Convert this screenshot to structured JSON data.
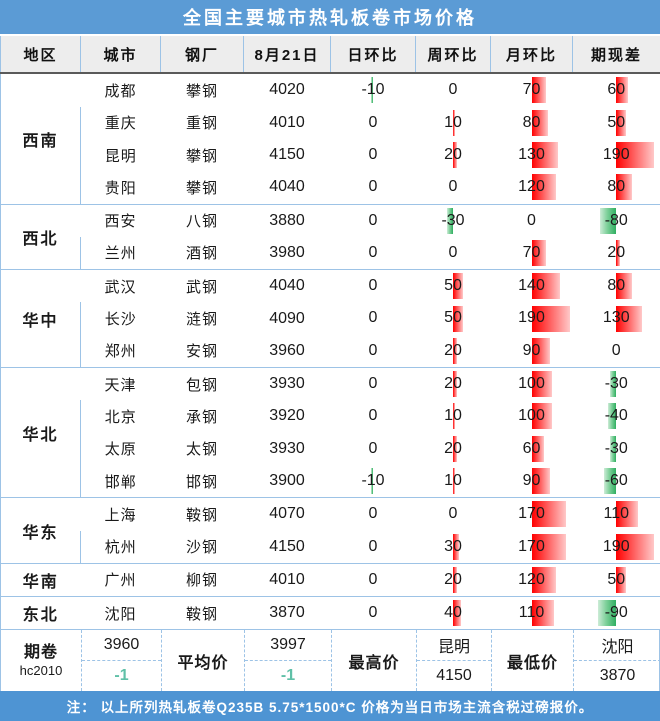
{
  "title": "全国主要城市热轧板卷市场价格",
  "columns": [
    "地区",
    "城市",
    "钢厂",
    "8月21日",
    "日环比",
    "周环比",
    "月环比",
    "期现差"
  ],
  "bar_scale": 0.2,
  "colors": {
    "title_bg": "#5B9BD5",
    "footnote_bg": "#4E94D3",
    "header_bg": "#EDEDED",
    "grid_blue": "#9DC3E6",
    "bar_positive": "#FF0000",
    "bar_negative": "#2FAE60",
    "change_text_green": "#5FC0A7"
  },
  "regions": [
    {
      "name": "西南",
      "rows": [
        {
          "city": "成都",
          "mill": "攀钢",
          "price": "4020",
          "day": -10,
          "week": 0,
          "month": 70,
          "spread": 60
        },
        {
          "city": "重庆",
          "mill": "重钢",
          "price": "4010",
          "day": 0,
          "week": 10,
          "month": 80,
          "spread": 50
        },
        {
          "city": "昆明",
          "mill": "攀钢",
          "price": "4150",
          "day": 0,
          "week": 20,
          "month": 130,
          "spread": 190
        },
        {
          "city": "贵阳",
          "mill": "攀钢",
          "price": "4040",
          "day": 0,
          "week": 0,
          "month": 120,
          "spread": 80
        }
      ]
    },
    {
      "name": "西北",
      "rows": [
        {
          "city": "西安",
          "mill": "八钢",
          "price": "3880",
          "day": 0,
          "week": -30,
          "month": 0,
          "spread": -80
        },
        {
          "city": "兰州",
          "mill": "酒钢",
          "price": "3980",
          "day": 0,
          "week": 0,
          "month": 70,
          "spread": 20
        }
      ]
    },
    {
      "name": "华中",
      "rows": [
        {
          "city": "武汉",
          "mill": "武钢",
          "price": "4040",
          "day": 0,
          "week": 50,
          "month": 140,
          "spread": 80
        },
        {
          "city": "长沙",
          "mill": "涟钢",
          "price": "4090",
          "day": 0,
          "week": 50,
          "month": 190,
          "spread": 130
        },
        {
          "city": "郑州",
          "mill": "安钢",
          "price": "3960",
          "day": 0,
          "week": 20,
          "month": 90,
          "spread": 0
        }
      ]
    },
    {
      "name": "华北",
      "rows": [
        {
          "city": "天津",
          "mill": "包钢",
          "price": "3930",
          "day": 0,
          "week": 20,
          "month": 100,
          "spread": -30
        },
        {
          "city": "北京",
          "mill": "承钢",
          "price": "3920",
          "day": 0,
          "week": 10,
          "month": 100,
          "spread": -40
        },
        {
          "city": "太原",
          "mill": "太钢",
          "price": "3930",
          "day": 0,
          "week": 20,
          "month": 60,
          "spread": -30
        },
        {
          "city": "邯郸",
          "mill": "邯钢",
          "price": "3900",
          "day": -10,
          "week": 10,
          "month": 90,
          "spread": -60
        }
      ]
    },
    {
      "name": "华东",
      "rows": [
        {
          "city": "上海",
          "mill": "鞍钢",
          "price": "4070",
          "day": 0,
          "week": 0,
          "month": 170,
          "spread": 110
        },
        {
          "city": "杭州",
          "mill": "沙钢",
          "price": "4150",
          "day": 0,
          "week": 30,
          "month": 170,
          "spread": 190
        }
      ]
    },
    {
      "name": "华南",
      "rows": [
        {
          "city": "广州",
          "mill": "柳钢",
          "price": "4010",
          "day": 0,
          "week": 20,
          "month": 120,
          "spread": 50
        }
      ]
    },
    {
      "name": "东北",
      "rows": [
        {
          "city": "沈阳",
          "mill": "鞍钢",
          "price": "3870",
          "day": 0,
          "week": 40,
          "month": 110,
          "spread": -90
        }
      ]
    }
  ],
  "summary": {
    "futures_label": "期卷",
    "futures_code": "hc2010",
    "futures_price": "3960",
    "futures_change": "-1",
    "avg_label": "平均价",
    "avg_price": "3997",
    "avg_change": "-1",
    "max_label": "最高价",
    "max_city": "昆明",
    "max_price": "4150",
    "min_label": "最低价",
    "min_city": "沈阳",
    "min_price": "3870"
  },
  "note": "注： 以上所列热轧板卷Q235B 5.75*1500*C 价格为当日市场主流含税过磅报价。",
  "chart_data": {
    "type": "table",
    "title": "全国主要城市热轧板卷市场价格",
    "columns": [
      "地区",
      "城市",
      "钢厂",
      "8月21日",
      "日环比",
      "周环比",
      "月环比",
      "期现差"
    ],
    "rows": [
      [
        "西南",
        "成都",
        "攀钢",
        4020,
        -10,
        0,
        70,
        60
      ],
      [
        "西南",
        "重庆",
        "重钢",
        4010,
        0,
        10,
        80,
        50
      ],
      [
        "西南",
        "昆明",
        "攀钢",
        4150,
        0,
        20,
        130,
        190
      ],
      [
        "西南",
        "贵阳",
        "攀钢",
        4040,
        0,
        0,
        120,
        80
      ],
      [
        "西北",
        "西安",
        "八钢",
        3880,
        0,
        -30,
        0,
        -80
      ],
      [
        "西北",
        "兰州",
        "酒钢",
        3980,
        0,
        0,
        70,
        20
      ],
      [
        "华中",
        "武汉",
        "武钢",
        4040,
        0,
        50,
        140,
        80
      ],
      [
        "华中",
        "长沙",
        "涟钢",
        4090,
        0,
        50,
        190,
        130
      ],
      [
        "华中",
        "郑州",
        "安钢",
        3960,
        0,
        20,
        90,
        0
      ],
      [
        "华北",
        "天津",
        "包钢",
        3930,
        0,
        20,
        100,
        -30
      ],
      [
        "华北",
        "北京",
        "承钢",
        3920,
        0,
        10,
        100,
        -40
      ],
      [
        "华北",
        "太原",
        "太钢",
        3930,
        0,
        20,
        60,
        -30
      ],
      [
        "华北",
        "邯郸",
        "邯钢",
        3900,
        -10,
        10,
        90,
        -60
      ],
      [
        "华东",
        "上海",
        "鞍钢",
        4070,
        0,
        0,
        170,
        110
      ],
      [
        "华东",
        "杭州",
        "沙钢",
        4150,
        0,
        30,
        170,
        190
      ],
      [
        "华南",
        "广州",
        "柳钢",
        4010,
        0,
        20,
        120,
        50
      ],
      [
        "东北",
        "沈阳",
        "鞍钢",
        3870,
        0,
        40,
        110,
        -90
      ]
    ],
    "annotations": {
      "futures_contract": "hc2010",
      "futures_price": 3960,
      "futures_change": -1,
      "average_price": 3997,
      "average_change": -1,
      "highest": {
        "city": "昆明",
        "price": 4150
      },
      "lowest": {
        "city": "沈阳",
        "price": 3870
      }
    },
    "conditional_format": "data-bars: red = positive, green = negative, anchored at cell center, ~0.2px per unit"
  }
}
